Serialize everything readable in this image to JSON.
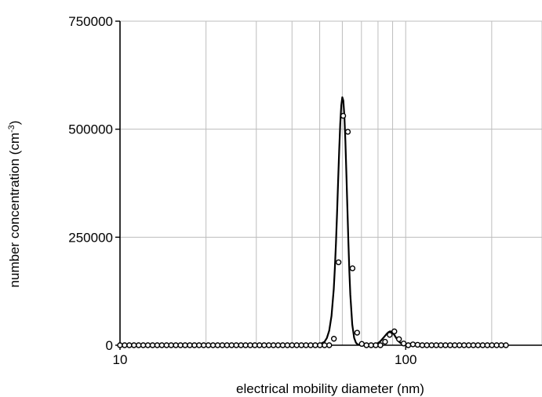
{
  "chart_data": {
    "type": "scatter",
    "title": "",
    "xlabel": "electrical mobility diameter (nm)",
    "ylabel": "number concentration (cm-3)",
    "ylabel_main": "number concentration (cm",
    "ylabel_sup": "-3",
    "ylabel_end": ")",
    "x_scale": "log",
    "xlim": [
      10,
      300
    ],
    "ylim": [
      0,
      750000
    ],
    "x_ticks": [
      10,
      100
    ],
    "x_tick_labels": [
      "10",
      "100"
    ],
    "x_gridlines": [
      20,
      30,
      40,
      50,
      60,
      70,
      80,
      90,
      100,
      200,
      300
    ],
    "y_ticks": [
      0,
      250000,
      500000,
      750000
    ],
    "y_tick_labels": [
      "0",
      "250000",
      "500000",
      "750000"
    ],
    "grid": true,
    "legend": "none",
    "series": [
      {
        "style": "markers",
        "marker": "open-circle",
        "x": [
          10.0,
          10.38,
          10.78,
          11.19,
          11.62,
          12.06,
          12.52,
          13.0,
          13.5,
          14.01,
          14.55,
          15.1,
          15.68,
          16.28,
          16.9,
          17.55,
          18.22,
          18.91,
          19.63,
          20.38,
          21.16,
          21.97,
          22.81,
          23.68,
          24.58,
          25.52,
          26.5,
          27.51,
          28.56,
          29.65,
          30.78,
          31.96,
          33.18,
          34.44,
          35.76,
          37.12,
          38.54,
          40.01,
          41.54,
          43.13,
          44.77,
          46.48,
          48.26,
          50.1,
          52.01,
          54.0,
          56.06,
          58.2,
          60.43,
          62.73,
          65.13,
          67.62,
          70.2,
          72.88,
          75.66,
          78.55,
          81.55,
          84.67,
          87.9,
          91.26,
          94.74,
          98.36,
          102.1,
          106.0,
          110.1,
          114.3,
          118.6,
          123.2,
          127.9,
          132.7,
          137.8,
          143.1,
          148.5,
          154.2,
          160.1,
          166.2,
          172.5,
          179.1,
          186.0,
          193.1,
          200.4,
          208.1,
          216.0,
          224.3
        ],
        "y": [
          0,
          0,
          0,
          0,
          0,
          0,
          0,
          0,
          0,
          0,
          0,
          0,
          0,
          0,
          0,
          0,
          0,
          0,
          0,
          0,
          0,
          0,
          0,
          0,
          0,
          0,
          0,
          0,
          0,
          0,
          0,
          0,
          0,
          0,
          0,
          0,
          0,
          0,
          0,
          0,
          0,
          0,
          0,
          0,
          0,
          0,
          15000,
          192000,
          531000,
          494000,
          178000,
          29000,
          3000,
          0,
          0,
          0,
          0,
          8000,
          24000,
          32000,
          14000,
          4000,
          0,
          2000,
          1000,
          0,
          0,
          0,
          0,
          0,
          0,
          0,
          0,
          0,
          0,
          0,
          0,
          0,
          0,
          0,
          0,
          0,
          0,
          0
        ]
      },
      {
        "style": "line",
        "x": [
          10,
          48,
          50,
          52,
          53,
          54,
          55,
          56,
          56.5,
          57,
          57.5,
          58,
          58.5,
          59,
          59.5,
          60,
          60.5,
          61,
          61.5,
          62,
          62.5,
          63,
          63.5,
          64,
          65,
          66,
          67,
          68,
          70,
          72,
          74,
          76,
          78,
          80,
          81,
          82,
          83,
          84,
          85,
          86,
          87,
          88,
          89,
          90,
          91,
          92,
          93,
          94,
          95,
          96,
          98,
          100,
          110,
          220
        ],
        "y": [
          0,
          0,
          2000,
          8000,
          17000,
          34000,
          68000,
          130000,
          178000,
          236000,
          304000,
          379000,
          450000,
          512000,
          555000,
          574000,
          566000,
          531000,
          473000,
          397000,
          318000,
          240000,
          171000,
          117000,
          48000,
          17000,
          5500,
          1500,
          500,
          200,
          300,
          800,
          2000,
          5000,
          7500,
          11000,
          15000,
          19000,
          23000,
          27000,
          30000,
          32000,
          31500,
          29000,
          25000,
          20000,
          15000,
          11000,
          7500,
          5000,
          2000,
          800,
          0,
          0
        ]
      }
    ]
  }
}
